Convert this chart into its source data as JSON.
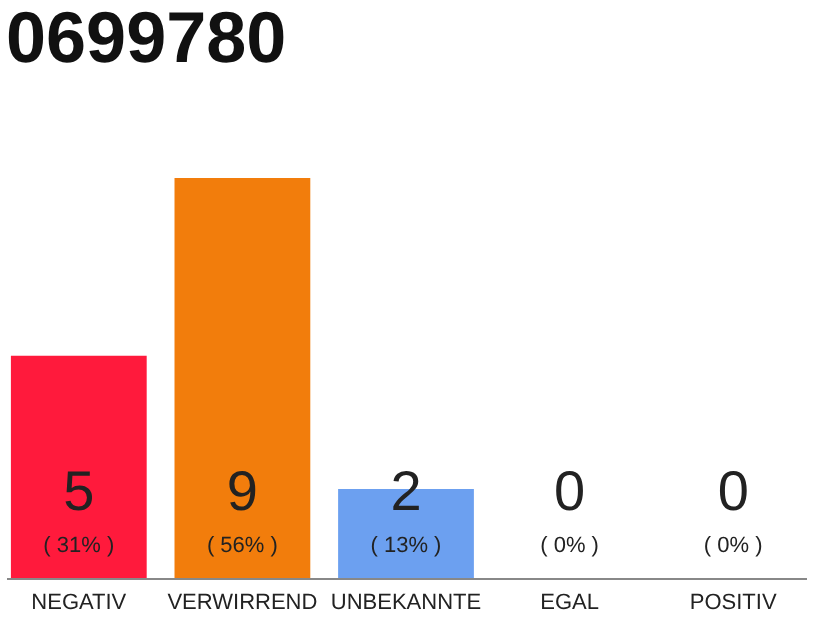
{
  "chart_data": {
    "type": "bar",
    "title": "0699780",
    "categories": [
      "NEGATIV",
      "VERWIRREND",
      "UNBEKANNTE",
      "EGAL",
      "POSITIV"
    ],
    "values": [
      5,
      9,
      2,
      0,
      0
    ],
    "colors": [
      "#ff1a3c",
      "#f27d0c",
      "#6ca0f0",
      "#bbbbbb",
      "#bbbbbb"
    ],
    "value_labels": [
      "5",
      "9",
      "2",
      "0",
      "0"
    ],
    "annotations": [
      "( 31% )",
      "( 56% )",
      "( 13% )",
      "( 0% )",
      "( 0% )"
    ]
  }
}
